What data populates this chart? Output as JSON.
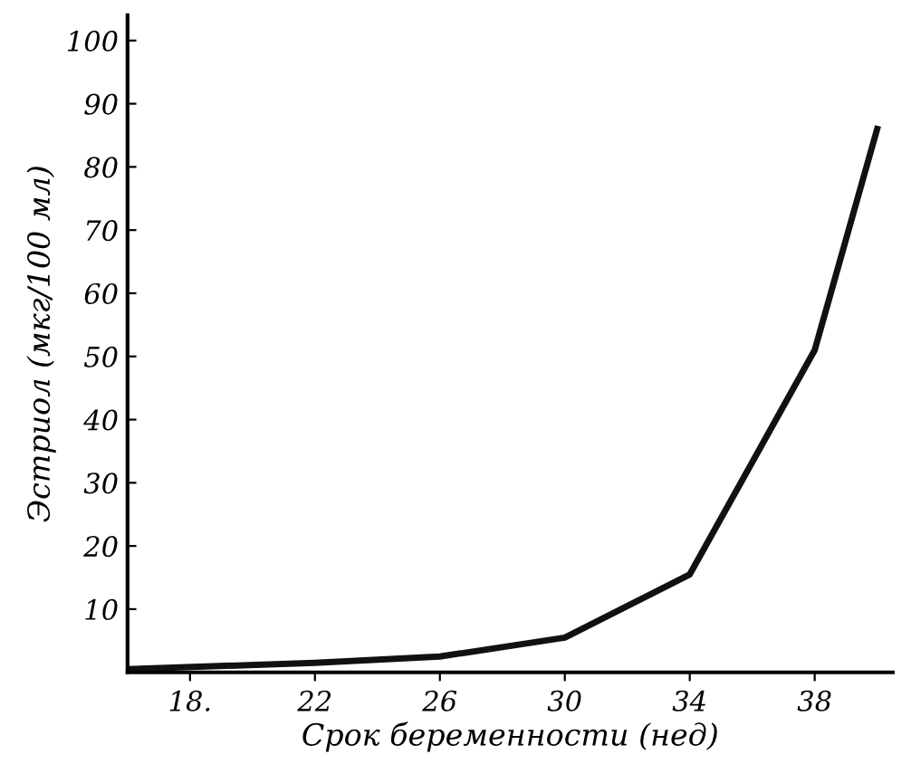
{
  "chart_data": {
    "type": "line",
    "xlabel": "Срок беременности (нед)",
    "ylabel": "Эстриол (мкг/100 мл)",
    "x": [
      16,
      22,
      26,
      30,
      34,
      38,
      40
    ],
    "series": [
      {
        "color": "#111111",
        "values": [
          0.5,
          1.5,
          2.5,
          5.5,
          15.5,
          51,
          86
        ]
      }
    ],
    "xlim": [
      16,
      40.5
    ],
    "xticks": [
      {
        "value": 18,
        "label": "18."
      },
      22,
      26,
      30,
      34,
      38
    ],
    "ylim": [
      0,
      104
    ],
    "yticks": [
      10,
      20,
      30,
      40,
      50,
      60,
      70,
      80,
      90,
      100
    ],
    "grid": false,
    "marker": "none",
    "line_style": "solid"
  }
}
